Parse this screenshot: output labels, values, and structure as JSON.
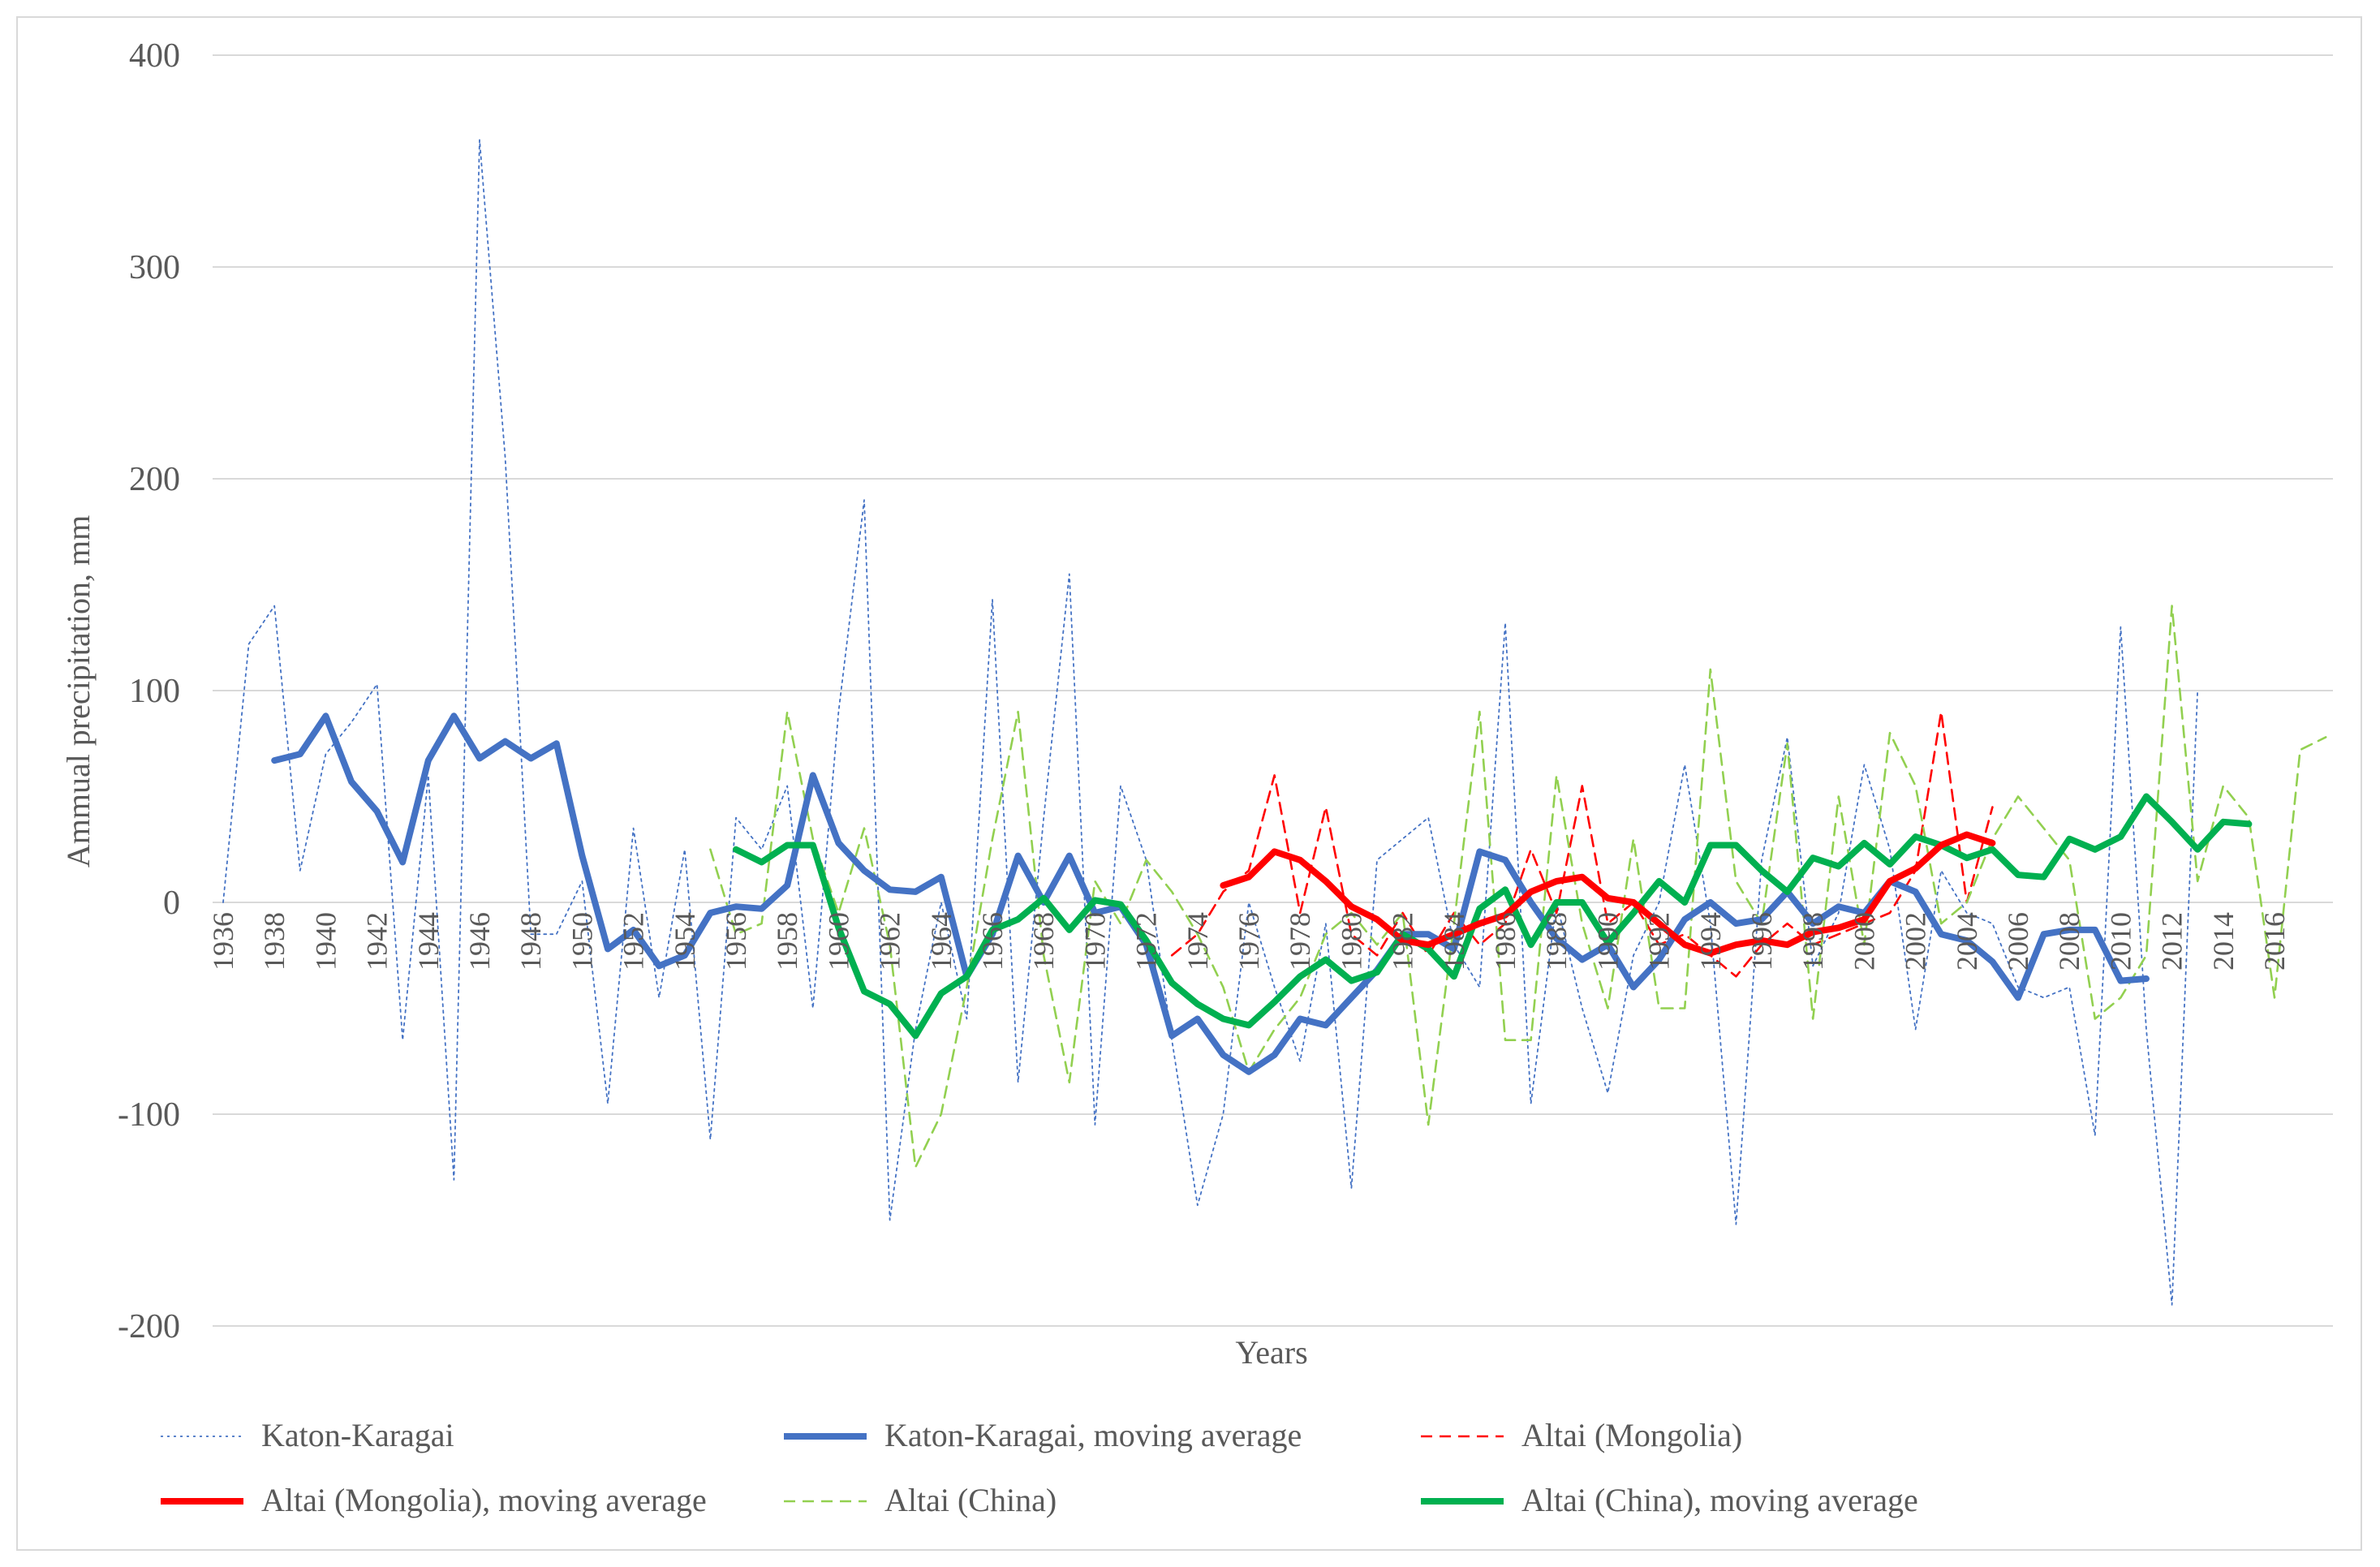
{
  "chart_data": {
    "type": "line",
    "title": "",
    "xlabel": "Years",
    "ylabel": "Ammual precipitation, mm",
    "ylim": [
      -200,
      400
    ],
    "xlim": [
      1936,
      2018
    ],
    "grid": true,
    "legend_position": "bottom",
    "y_ticks": [
      "-200",
      "-100",
      "0",
      "100",
      "200",
      "300",
      "400"
    ],
    "x_ticks": [
      "1936",
      "1938",
      "1940",
      "1942",
      "1944",
      "1946",
      "1948",
      "1950",
      "1952",
      "1954",
      "1956",
      "1958",
      "1960",
      "1962",
      "1964",
      "1966",
      "1968",
      "1970",
      "1972",
      "1974",
      "1976",
      "1978",
      "1980",
      "1982",
      "1984",
      "1986",
      "1988",
      "1990",
      "1992",
      "1994",
      "1996",
      "1998",
      "2000",
      "2002",
      "2004",
      "2006",
      "2008",
      "2010",
      "2012",
      "2014",
      "2016"
    ],
    "series": [
      {
        "name": "Katon-Karagai",
        "color": "#4472c4",
        "style": "dotted-thin",
        "x": [
          1936,
          1937,
          1938,
          1939,
          1940,
          1941,
          1942,
          1943,
          1944,
          1945,
          1946,
          1947,
          1948,
          1949,
          1950,
          1951,
          1952,
          1953,
          1954,
          1955,
          1956,
          1957,
          1958,
          1959,
          1960,
          1961,
          1962,
          1963,
          1964,
          1965,
          1966,
          1967,
          1968,
          1969,
          1970,
          1971,
          1972,
          1973,
          1974,
          1975,
          1976,
          1977,
          1978,
          1979,
          1980,
          1981,
          1982,
          1983,
          1984,
          1985,
          1986,
          1987,
          1988,
          1989,
          1990,
          1991,
          1992,
          1993,
          1994,
          1995,
          1996,
          1997,
          1998,
          1999,
          2000,
          2001,
          2002,
          2003,
          2004,
          2005,
          2006,
          2007,
          2008,
          2009,
          2010,
          2011,
          2012,
          2013
        ],
        "y": [
          0,
          122,
          140,
          15,
          70,
          85,
          103,
          -65,
          60,
          -131,
          360,
          210,
          -15,
          -15,
          10,
          -95,
          35,
          -45,
          25,
          -112,
          40,
          25,
          55,
          -50,
          90,
          190,
          -150,
          -60,
          0,
          -55,
          143,
          -85,
          40,
          155,
          -105,
          55,
          20,
          -65,
          -143,
          -100,
          0,
          -40,
          -75,
          -10,
          -135,
          20,
          30,
          40,
          -20,
          -40,
          132,
          -95,
          0,
          -50,
          -90,
          -25,
          0,
          65,
          -10,
          -152,
          20,
          78,
          -30,
          -5,
          65,
          25,
          -60,
          15,
          -5,
          -10,
          -40,
          -45,
          -40,
          -110,
          130,
          -60,
          -190,
          100
        ]
      },
      {
        "name": "Katon-Karagai, moving average",
        "color": "#4472c4",
        "style": "solid-thick",
        "x": [
          1938,
          1939,
          1940,
          1941,
          1942,
          1943,
          1944,
          1945,
          1946,
          1947,
          1948,
          1949,
          1950,
          1951,
          1952,
          1953,
          1954,
          1955,
          1956,
          1957,
          1958,
          1959,
          1960,
          1961,
          1962,
          1963,
          1964,
          1965,
          1966,
          1967,
          1968,
          1969,
          1970,
          1971,
          1972,
          1973,
          1974,
          1975,
          1976,
          1977,
          1978,
          1979,
          1980,
          1981,
          1982,
          1983,
          1984,
          1985,
          1986,
          1987,
          1988,
          1989,
          1990,
          1991,
          1992,
          1993,
          1994,
          1995,
          1996,
          1997,
          1998,
          1999,
          2000,
          2001,
          2002,
          2003,
          2004,
          2005,
          2006,
          2007,
          2008,
          2009,
          2010,
          2011
        ],
        "y": [
          67,
          70,
          88,
          57,
          43,
          19,
          67,
          88,
          68,
          76,
          68,
          75,
          22,
          -22,
          -13,
          -30,
          -25,
          -5,
          -2,
          -3,
          8,
          60,
          28,
          15,
          6,
          5,
          12,
          -35,
          -15,
          22,
          0,
          22,
          -5,
          -2,
          -20,
          -63,
          -55,
          -72,
          -80,
          -72,
          -55,
          -58,
          -45,
          -32,
          -15,
          -15,
          -22,
          24,
          20,
          0,
          -17,
          -27,
          -20,
          -40,
          -27,
          -8,
          0,
          -10,
          -8,
          5,
          -10,
          -2,
          -5,
          10,
          5,
          -15,
          -18,
          -28,
          -45,
          -15,
          -13,
          -13,
          -37,
          -36
        ]
      },
      {
        "name": "Altai (Mongolia)",
        "color": "#ff0000",
        "style": "dashed-thin",
        "x": [
          1973,
          1974,
          1975,
          1976,
          1977,
          1978,
          1979,
          1980,
          1981,
          1982,
          1983,
          1984,
          1985,
          1986,
          1987,
          1988,
          1989,
          1990,
          1991,
          1992,
          1993,
          1994,
          1995,
          1996,
          1997,
          1998,
          1999,
          2000,
          2001,
          2002,
          2003,
          2004,
          2005
        ],
        "y": [
          -25,
          -15,
          5,
          15,
          60,
          -5,
          45,
          -15,
          -25,
          -5,
          -25,
          -5,
          -20,
          -10,
          25,
          -5,
          55,
          -10,
          0,
          -20,
          -15,
          -25,
          -35,
          -20,
          -10,
          -20,
          -15,
          -10,
          -5,
          15,
          90,
          0,
          45
        ]
      },
      {
        "name": "Altai (Mongolia), moving average",
        "color": "#ff0000",
        "style": "solid-thick",
        "x": [
          1975,
          1976,
          1977,
          1978,
          1979,
          1980,
          1981,
          1982,
          1983,
          1984,
          1985,
          1986,
          1987,
          1988,
          1989,
          1990,
          1991,
          1992,
          1993,
          1994,
          1995,
          1996,
          1997,
          1998,
          1999,
          2000,
          2001,
          2002,
          2003,
          2004,
          2005
        ],
        "y": [
          8,
          12,
          24,
          20,
          10,
          -2,
          -8,
          -18,
          -20,
          -15,
          -10,
          -6,
          5,
          10,
          12,
          2,
          0,
          -10,
          -20,
          -24,
          -20,
          -18,
          -20,
          -14,
          -12,
          -8,
          10,
          16,
          27,
          32,
          28
        ]
      },
      {
        "name": "Altai (China)",
        "color": "#92d050",
        "style": "dashed-thin",
        "x": [
          1955,
          1956,
          1957,
          1958,
          1959,
          1960,
          1961,
          1962,
          1963,
          1964,
          1965,
          1966,
          1967,
          1968,
          1969,
          1970,
          1971,
          1972,
          1973,
          1974,
          1975,
          1976,
          1977,
          1978,
          1979,
          1980,
          1981,
          1982,
          1983,
          1984,
          1985,
          1986,
          1987,
          1988,
          1989,
          1990,
          1991,
          1992,
          1993,
          1994,
          1995,
          1996,
          1997,
          1998,
          1999,
          2000,
          2001,
          2002,
          2003,
          2004,
          2005,
          2006,
          2007,
          2008,
          2009,
          2010,
          2011,
          2012,
          2013,
          2014,
          2015,
          2016,
          2017,
          2018
        ],
        "y": [
          25,
          -15,
          -10,
          90,
          30,
          -5,
          35,
          -20,
          -125,
          -100,
          -40,
          30,
          90,
          -25,
          -85,
          10,
          -10,
          20,
          5,
          -15,
          -40,
          -80,
          -60,
          -45,
          -15,
          -5,
          -20,
          -5,
          -105,
          -10,
          90,
          -65,
          -65,
          60,
          -10,
          -50,
          30,
          -50,
          -50,
          110,
          10,
          -10,
          75,
          -55,
          50,
          -20,
          80,
          55,
          -10,
          0,
          30,
          50,
          35,
          20,
          -55,
          -45,
          -25,
          140,
          10,
          55,
          40,
          -45,
          72,
          78
        ]
      },
      {
        "name": "Altai (China), moving average",
        "color": "#00b050",
        "style": "solid-thick",
        "x": [
          1956,
          1957,
          1958,
          1959,
          1960,
          1961,
          1962,
          1963,
          1964,
          1965,
          1966,
          1967,
          1968,
          1969,
          1970,
          1971,
          1972,
          1973,
          1974,
          1975,
          1976,
          1977,
          1978,
          1979,
          1980,
          1981,
          1982,
          1983,
          1984,
          1985,
          1986,
          1987,
          1988,
          1989,
          1990,
          1991,
          1992,
          1993,
          1994,
          1995,
          1996,
          1997,
          1998,
          1999,
          2000,
          2001,
          2002,
          2003,
          2004,
          2005,
          2006,
          2007,
          2008,
          2009,
          2010,
          2011,
          2012,
          2013,
          2014,
          2015
        ],
        "y": [
          25,
          19,
          27,
          27,
          -12,
          -42,
          -48,
          -63,
          -43,
          -35,
          -13,
          -8,
          2,
          -13,
          1,
          -1,
          -18,
          -38,
          -48,
          -55,
          -58,
          -47,
          -35,
          -27,
          -37,
          -33,
          -15,
          -22,
          -35,
          -3,
          6,
          -20,
          0,
          0,
          -19,
          -5,
          10,
          0,
          27,
          27,
          15,
          5,
          21,
          17,
          28,
          18,
          31,
          27,
          21,
          25,
          13,
          12,
          30,
          25,
          31,
          50,
          38,
          25,
          38,
          37
        ]
      }
    ]
  }
}
